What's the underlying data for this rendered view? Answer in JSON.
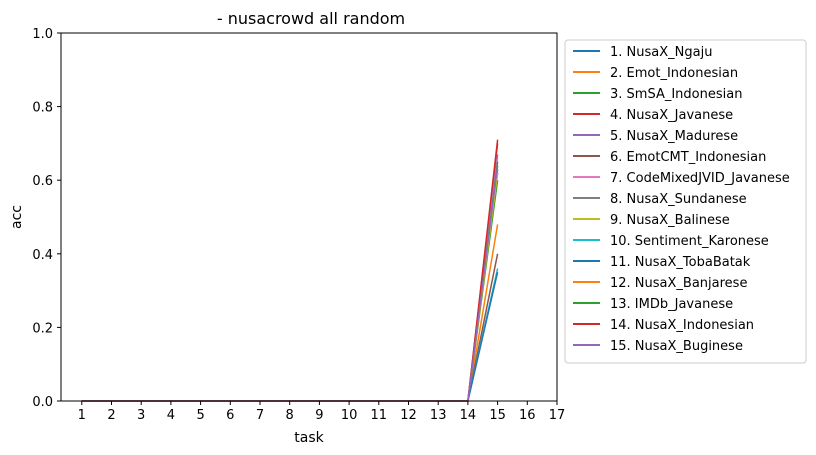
{
  "chart_data": {
    "type": "line",
    "title": "- nusacrowd all random",
    "xlabel": "task",
    "ylabel": "acc",
    "xlim": [
      0.3,
      17
    ],
    "ylim": [
      0,
      1
    ],
    "x_ticks": [
      "1",
      "2",
      "3",
      "4",
      "5",
      "6",
      "7",
      "8",
      "9",
      "10",
      "11",
      "12",
      "13",
      "14",
      "15",
      "16",
      "17"
    ],
    "y_ticks": [
      "0.0",
      "0.2",
      "0.4",
      "0.6",
      "0.8",
      "1.0"
    ],
    "grid": false,
    "legend_position": "outside-right",
    "x": [
      1,
      2,
      3,
      4,
      5,
      6,
      7,
      8,
      9,
      10,
      11,
      12,
      13,
      14,
      15
    ],
    "series": [
      {
        "name": "1. NusaX_Ngaju",
        "color": "#1f77b4",
        "values": [
          0,
          0,
          0,
          0,
          0,
          0,
          0,
          0,
          0,
          0,
          0,
          0,
          0,
          0,
          0.63
        ]
      },
      {
        "name": "2. Emot_Indonesian",
        "color": "#ff7f0e",
        "values": [
          0,
          0,
          0,
          0,
          0,
          0,
          0,
          0,
          0,
          0,
          0,
          0,
          0,
          0,
          0.48
        ]
      },
      {
        "name": "3. SmSA_Indonesian",
        "color": "#2ca02c",
        "values": [
          0,
          0,
          0,
          0,
          0,
          0,
          0,
          0,
          0,
          0,
          0,
          0,
          0,
          0,
          0.6
        ]
      },
      {
        "name": "4. NusaX_Javanese",
        "color": "#d62728",
        "values": [
          0,
          0,
          0,
          0,
          0,
          0,
          0,
          0,
          0,
          0,
          0,
          0,
          0,
          0,
          0.7
        ]
      },
      {
        "name": "5. NusaX_Madurese",
        "color": "#9467bd",
        "values": [
          0,
          0,
          0,
          0,
          0,
          0,
          0,
          0,
          0,
          0,
          0,
          0,
          0,
          0,
          0.67
        ]
      },
      {
        "name": "6. EmotCMT_Indonesian",
        "color": "#8c564b",
        "values": [
          0,
          0,
          0,
          0,
          0,
          0,
          0,
          0,
          0,
          0,
          0,
          0,
          0,
          0,
          0.4
        ]
      },
      {
        "name": "7. CodeMixedJVID_Javanese",
        "color": "#e377c2",
        "values": [
          0,
          0,
          0,
          0,
          0,
          0,
          0,
          0,
          0,
          0,
          0,
          0,
          0,
          0,
          0.66
        ]
      },
      {
        "name": "8. NusaX_Sundanese",
        "color": "#7f7f7f",
        "values": [
          0,
          0,
          0,
          0,
          0,
          0,
          0,
          0,
          0,
          0,
          0,
          0,
          0,
          0,
          0.62
        ]
      },
      {
        "name": "9. NusaX_Balinese",
        "color": "#bcbd22",
        "values": [
          0,
          0,
          0,
          0,
          0,
          0,
          0,
          0,
          0,
          0,
          0,
          0,
          0,
          0,
          0.62
        ]
      },
      {
        "name": "10. Sentiment_Karonese",
        "color": "#17becf",
        "values": [
          0,
          0,
          0,
          0,
          0,
          0,
          0,
          0,
          0,
          0,
          0,
          0,
          0,
          0,
          0.36
        ]
      },
      {
        "name": "11. NusaX_TobaBatak",
        "color": "#1f77b4",
        "values": [
          0,
          0,
          0,
          0,
          0,
          0,
          0,
          0,
          0,
          0,
          0,
          0,
          0,
          0,
          0.35
        ]
      },
      {
        "name": "12. NusaX_Banjarese",
        "color": "#ff7f0e",
        "values": [
          0,
          0,
          0,
          0,
          0,
          0,
          0,
          0,
          0,
          0,
          0,
          0,
          0,
          0,
          0.64
        ]
      },
      {
        "name": "13. IMDb_Javanese",
        "color": "#2ca02c",
        "values": [
          0,
          0,
          0,
          0,
          0,
          0,
          0,
          0,
          0,
          0,
          0,
          0,
          0,
          0,
          0.65
        ]
      },
      {
        "name": "14. NusaX_Indonesian",
        "color": "#d62728",
        "values": [
          0,
          0,
          0,
          0,
          0,
          0,
          0,
          0,
          0,
          0,
          0,
          0,
          0,
          0,
          0.71
        ]
      },
      {
        "name": "15. NusaX_Buginese",
        "color": "#9467bd",
        "values": [
          0,
          0,
          0,
          0,
          0,
          0,
          0,
          0,
          0,
          0,
          0,
          0,
          0,
          0,
          0.64
        ]
      }
    ]
  }
}
